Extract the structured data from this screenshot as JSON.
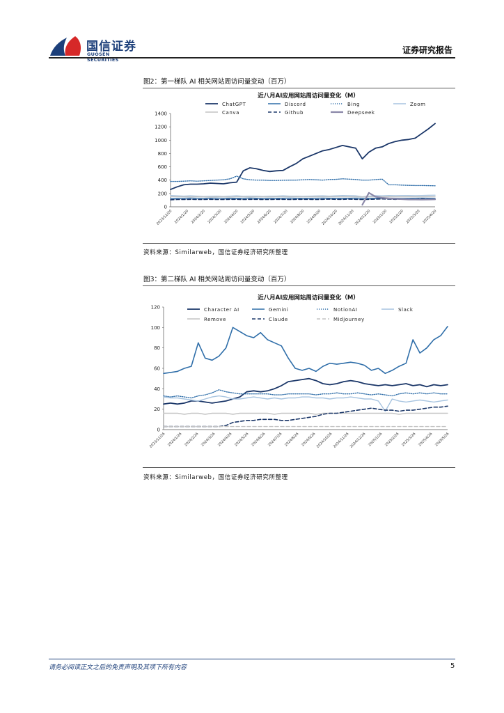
{
  "header": {
    "logo_cn": "国信证券",
    "logo_en": "GUOSEN SECURITIES",
    "report_type": "证券研究报告"
  },
  "figures": [
    {
      "caption": "图2：第一梯队 AI 相关网站周访问量变动（百万）",
      "source": "资料来源：Similarweb，国信证券经济研究所整理"
    },
    {
      "caption": "图3：第二梯队 AI 相关网站周访问量变动（百万）",
      "source": "资料来源：Similarweb，国信证券经济研究所整理"
    }
  ],
  "footer": {
    "disclaimer": "请务必阅读正文之后的免责声明及其项下所有内容",
    "page_number": "5"
  },
  "chart_data": [
    {
      "type": "line",
      "title": "近八月AI应用网站周访问量变化（M）",
      "ylim": [
        0,
        1400
      ],
      "yticks": [
        0,
        200,
        400,
        600,
        800,
        1000,
        1200,
        1400
      ],
      "legend_placement": "top",
      "xtick_labels": [
        "2023/12/20",
        "2024/1/20",
        "2024/2/20",
        "2024/3/20",
        "2024/4/20",
        "2024/5/20",
        "2024/6/20",
        "2024/7/20",
        "2024/8/20",
        "2024/9/20",
        "2024/10/20",
        "2024/11/20",
        "2024/12/20",
        "2025/1/20",
        "2025/2/20",
        "2025/3/20",
        "2025/4/20"
      ],
      "series": [
        {
          "name": "ChatGPT",
          "color": "#1a3668",
          "style": "solid",
          "width": 1.8,
          "values": [
            260,
            300,
            330,
            340,
            340,
            345,
            355,
            350,
            345,
            360,
            370,
            540,
            585,
            570,
            545,
            530,
            540,
            545,
            600,
            650,
            720,
            760,
            800,
            840,
            860,
            890,
            920,
            900,
            880,
            720,
            820,
            880,
            900,
            950,
            980,
            1000,
            1010,
            1030,
            1100,
            1170,
            1250
          ]
        },
        {
          "name": "Discord",
          "color": "#2f6ea9",
          "style": "solid",
          "width": 1.4,
          "values": [
            125,
            125,
            128,
            130,
            128,
            126,
            128,
            130,
            128,
            125,
            125,
            128,
            130,
            128,
            126,
            125,
            126,
            128,
            130,
            128,
            126,
            125,
            128,
            130,
            128,
            126,
            125,
            128,
            130,
            128,
            126,
            125,
            128,
            130,
            128,
            126,
            125,
            128,
            130,
            128,
            125
          ]
        },
        {
          "name": "Bing",
          "color": "#2f6ea9",
          "style": "dotted",
          "width": 1.4,
          "values": [
            380,
            380,
            385,
            390,
            385,
            390,
            395,
            400,
            405,
            420,
            460,
            420,
            405,
            400,
            400,
            395,
            395,
            398,
            400,
            400,
            405,
            410,
            405,
            400,
            410,
            412,
            420,
            415,
            410,
            400,
            400,
            408,
            415,
            330,
            330,
            325,
            322,
            320,
            320,
            318,
            315
          ]
        },
        {
          "name": "Zoom",
          "color": "#a7c4e0",
          "style": "solid",
          "width": 1.4,
          "values": [
            170,
            165,
            160,
            165,
            160,
            155,
            158,
            160,
            155,
            160,
            165,
            158,
            160,
            160,
            155,
            160,
            160,
            165,
            160,
            160,
            158,
            160,
            162,
            165,
            160,
            165,
            170,
            168,
            165,
            150,
            160,
            168,
            165,
            170,
            168,
            170,
            170,
            168,
            170,
            172,
            175
          ]
        },
        {
          "name": "Canva",
          "color": "#c4c4c4",
          "style": "solid",
          "width": 1.4,
          "values": [
            155,
            150,
            150,
            148,
            150,
            150,
            145,
            150,
            150,
            145,
            150,
            150,
            148,
            150,
            150,
            148,
            150,
            150,
            150,
            152,
            150,
            150,
            152,
            150,
            152,
            150,
            152,
            150,
            150,
            148,
            150,
            150,
            150,
            152,
            150,
            150,
            152,
            150,
            150,
            152,
            150
          ]
        },
        {
          "name": "Github",
          "color": "#1a3668",
          "style": "dashed",
          "width": 1.6,
          "values": [
            105,
            110,
            110,
            112,
            110,
            110,
            112,
            110,
            110,
            112,
            112,
            110,
            112,
            112,
            110,
            110,
            112,
            112,
            110,
            112,
            112,
            112,
            110,
            112,
            115,
            112,
            112,
            115,
            112,
            110,
            112,
            115,
            118,
            115,
            112,
            115,
            115,
            112,
            118,
            115,
            115
          ]
        },
        {
          "name": "Deepseek",
          "color": "#8a87a8",
          "style": "solid",
          "width": 2.2,
          "values": [
            null,
            null,
            null,
            null,
            null,
            null,
            null,
            null,
            null,
            null,
            null,
            null,
            null,
            null,
            null,
            null,
            null,
            null,
            null,
            null,
            null,
            null,
            null,
            null,
            null,
            null,
            null,
            null,
            null,
            30,
            210,
            150,
            135,
            125,
            120,
            115,
            110,
            110,
            108,
            110,
            112
          ]
        }
      ]
    },
    {
      "type": "line",
      "title": "近八月AI应用网站周访问量变化（M）",
      "ylim": [
        0,
        120
      ],
      "yticks": [
        0,
        20,
        40,
        60,
        80,
        100,
        120
      ],
      "legend_placement": "top",
      "xtick_labels": [
        "2023/11/26",
        "2024/1/26",
        "2024/2/26",
        "2024/3/26",
        "2024/4/26",
        "2024/5/26",
        "2024/6/26",
        "2024/7/26",
        "2024/8/26",
        "2024/9/26",
        "2024/10/26",
        "2024/11/26",
        "2024/12/26",
        "2025/1/26",
        "2025/2/26",
        "2025/3/26",
        "2025/4/26",
        "2025/5/26"
      ],
      "series": [
        {
          "name": "Character AI",
          "color": "#1a3668",
          "style": "solid",
          "width": 1.8,
          "values": [
            25,
            26,
            25,
            26,
            28,
            28,
            27,
            26,
            27,
            28,
            30,
            32,
            37,
            38,
            37,
            38,
            40,
            43,
            47,
            48,
            49,
            50,
            48,
            45,
            44,
            45,
            47,
            48,
            47,
            45,
            44,
            43,
            44,
            43,
            44,
            45,
            43,
            44,
            42,
            44,
            43,
            44
          ]
        },
        {
          "name": "Gemini",
          "color": "#2f6ea9",
          "style": "solid",
          "width": 1.6,
          "values": [
            55,
            56,
            57,
            60,
            62,
            85,
            70,
            68,
            72,
            80,
            100,
            96,
            92,
            90,
            95,
            88,
            85,
            82,
            70,
            60,
            58,
            60,
            57,
            62,
            65,
            64,
            65,
            66,
            65,
            63,
            58,
            60,
            55,
            58,
            62,
            65,
            88,
            75,
            80,
            88,
            92,
            101
          ]
        },
        {
          "name": "NotionAI",
          "color": "#2f6ea9",
          "style": "dotted",
          "width": 1.4,
          "values": [
            33,
            32,
            33,
            32,
            31,
            33,
            34,
            36,
            39,
            37,
            36,
            35,
            35,
            35,
            35,
            35,
            34,
            34,
            35,
            35,
            35,
            35,
            34,
            35,
            35,
            36,
            35,
            35,
            36,
            35,
            34,
            35,
            34,
            33,
            35,
            36,
            35,
            36,
            35,
            36,
            35,
            35
          ]
        },
        {
          "name": "Slack",
          "color": "#a7c4e0",
          "style": "solid",
          "width": 1.4,
          "values": [
            32,
            31,
            31,
            30,
            29,
            28,
            30,
            32,
            33,
            32,
            30,
            30,
            31,
            32,
            31,
            30,
            31,
            30,
            31,
            31,
            32,
            32,
            31,
            31,
            30,
            31,
            31,
            32,
            31,
            30,
            30,
            28,
            18,
            30,
            28,
            27,
            28,
            29,
            28,
            27,
            28,
            29
          ]
        },
        {
          "name": "Remove",
          "color": "#c4c4c4",
          "style": "solid",
          "width": 1.4,
          "values": [
            16,
            16,
            16,
            15,
            16,
            16,
            15,
            16,
            16,
            16,
            15,
            16,
            16,
            16,
            16,
            16,
            15,
            16,
            16,
            16,
            16,
            16,
            15,
            16,
            16,
            16,
            16,
            16,
            16,
            16,
            16,
            16,
            16,
            16,
            15,
            16,
            16,
            16,
            16,
            16,
            16,
            16
          ]
        },
        {
          "name": "Claude",
          "color": "#1a3668",
          "style": "dashed",
          "width": 1.6,
          "values": [
            3,
            3,
            3,
            3,
            3,
            3,
            3,
            3,
            3,
            4,
            7,
            8,
            9,
            9,
            10,
            10,
            10,
            9,
            9,
            10,
            11,
            12,
            13,
            15,
            16,
            16,
            17,
            18,
            19,
            20,
            21,
            20,
            19,
            19,
            18,
            19,
            19,
            20,
            21,
            22,
            22,
            23
          ]
        },
        {
          "name": "Midjourney",
          "color": "#c4c4c4",
          "style": "dashed",
          "width": 1.4,
          "values": [
            3,
            3,
            3,
            3,
            3,
            3,
            3,
            3,
            3,
            3,
            3,
            3,
            3,
            3,
            3,
            3,
            3,
            3,
            3,
            3,
            3,
            3,
            3,
            3,
            3,
            3,
            3,
            3,
            3,
            3,
            3,
            3,
            3,
            3,
            3,
            3,
            3,
            3,
            3,
            3,
            3,
            3
          ]
        }
      ]
    }
  ]
}
